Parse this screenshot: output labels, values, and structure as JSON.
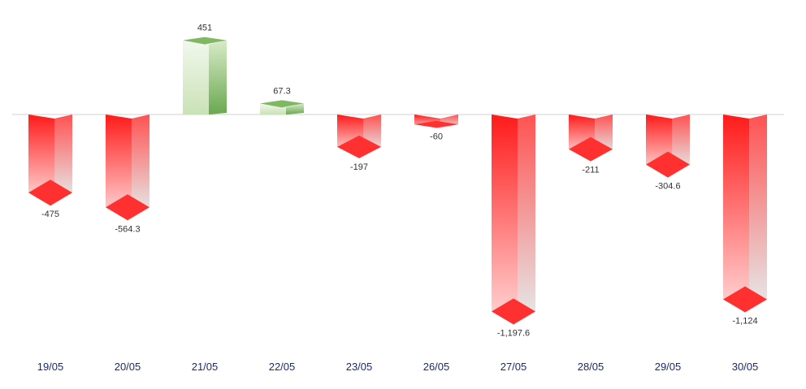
{
  "chart_data": {
    "type": "bar",
    "style": "3d-prism",
    "categories": [
      "19/05",
      "20/05",
      "21/05",
      "22/05",
      "23/05",
      "26/05",
      "27/05",
      "28/05",
      "29/05",
      "30/05"
    ],
    "values": [
      -475,
      -564.3,
      451,
      67.3,
      -197,
      -60,
      -1197.6,
      -211,
      -304.6,
      -1124
    ],
    "value_labels": [
      "-475",
      "-564.3",
      "451",
      "67.3",
      "-197",
      "-60",
      "-1,197.6",
      "-211",
      "-304.6",
      "-1,124"
    ],
    "title": "",
    "xlabel": "",
    "ylabel": "",
    "ylim": [
      -1200,
      500
    ],
    "grid": false,
    "legend": "none",
    "colors": {
      "positive_dark": "#6aa84f",
      "positive_light": "#eef6e8",
      "negative_dark": "#ff2020",
      "negative_light": "#e9e9e9",
      "baseline": "#d0d0d0",
      "category_text": "#1a2a6c"
    }
  }
}
